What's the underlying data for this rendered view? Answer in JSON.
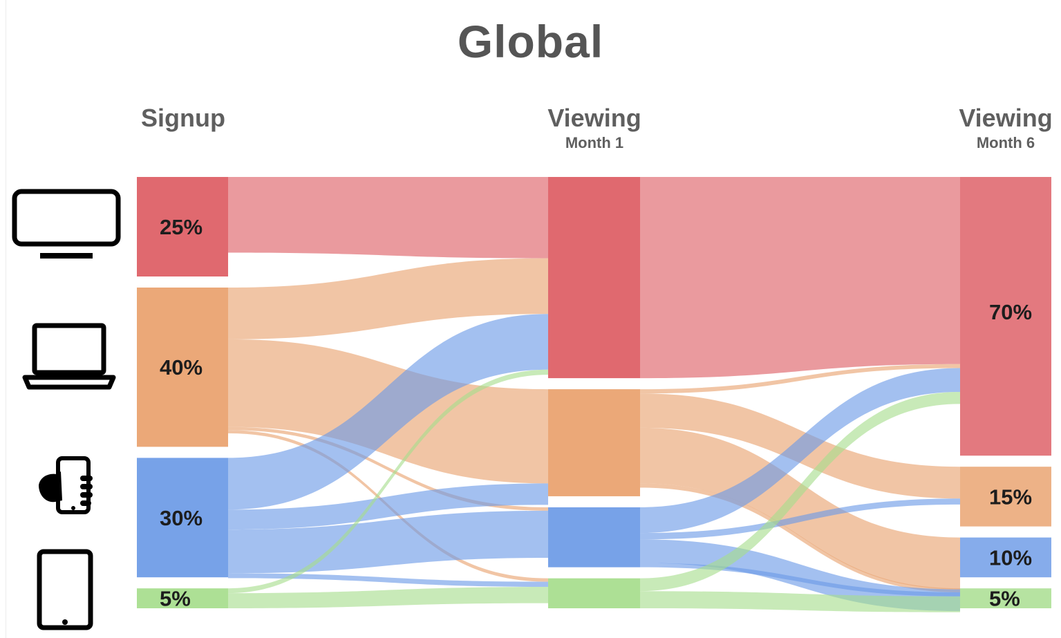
{
  "title": "Global",
  "stages": [
    {
      "id": "signup",
      "label": "Signup",
      "sublabel": ""
    },
    {
      "id": "m1",
      "label": "Viewing",
      "sublabel": "Month 1"
    },
    {
      "id": "m6",
      "label": "Viewing",
      "sublabel": "Month 6"
    }
  ],
  "devices": [
    {
      "key": "tv",
      "icon": "tv-icon",
      "color": "#dd5c63"
    },
    {
      "key": "laptop",
      "icon": "laptop-icon",
      "color": "#e9a16d"
    },
    {
      "key": "phone",
      "icon": "smartphone-icon",
      "color": "#6b9ae6"
    },
    {
      "key": "tablet",
      "icon": "tablet-icon",
      "color": "#a6dd8c"
    }
  ],
  "chart_data": {
    "type": "sankey",
    "title": "Global",
    "nodes": {
      "signup": [
        {
          "device": "tv",
          "value": 25,
          "label": "25%"
        },
        {
          "device": "laptop",
          "value": 40,
          "label": "40%"
        },
        {
          "device": "phone",
          "value": 30,
          "label": "30%"
        },
        {
          "device": "tablet",
          "value": 5,
          "label": "5%"
        }
      ],
      "m1": [
        {
          "device": "tv",
          "value": 47,
          "label": ""
        },
        {
          "device": "laptop",
          "value": 25,
          "label": ""
        },
        {
          "device": "phone",
          "value": 14,
          "label": ""
        },
        {
          "device": "tablet",
          "value": 7,
          "label": ""
        }
      ],
      "m6": [
        {
          "device": "tv",
          "value": 70,
          "label": "70%"
        },
        {
          "device": "laptop",
          "value": 15,
          "label": "15%"
        },
        {
          "device": "phone",
          "value": 10,
          "label": "10%"
        },
        {
          "device": "tablet",
          "value": 5,
          "label": "5%"
        }
      ]
    },
    "links": [
      {
        "stage": 0,
        "from": "tv",
        "to": "tv",
        "value": 19
      },
      {
        "stage": 0,
        "from": "laptop",
        "to": "tv",
        "value": 13
      },
      {
        "stage": 0,
        "from": "laptop",
        "to": "laptop",
        "value": 22
      },
      {
        "stage": 0,
        "from": "laptop",
        "to": "phone",
        "value": 0.8
      },
      {
        "stage": 0,
        "from": "laptop",
        "to": "tablet",
        "value": 0.8
      },
      {
        "stage": 0,
        "from": "phone",
        "to": "tv",
        "value": 13
      },
      {
        "stage": 0,
        "from": "phone",
        "to": "laptop",
        "value": 5
      },
      {
        "stage": 0,
        "from": "phone",
        "to": "phone",
        "value": 11
      },
      {
        "stage": 0,
        "from": "phone",
        "to": "tablet",
        "value": 1.2
      },
      {
        "stage": 0,
        "from": "tablet",
        "to": "tv",
        "value": 1.2
      },
      {
        "stage": 0,
        "from": "tablet",
        "to": "tablet",
        "value": 3.8
      },
      {
        "stage": 1,
        "from": "tv",
        "to": "tv",
        "value": 47
      },
      {
        "stage": 1,
        "from": "laptop",
        "to": "laptop",
        "value": 8
      },
      {
        "stage": 1,
        "from": "laptop",
        "to": "phone",
        "value": 13
      },
      {
        "stage": 1,
        "from": "laptop",
        "to": "tablet",
        "value": 1
      },
      {
        "stage": 1,
        "from": "laptop",
        "to": "tv",
        "value": 1
      },
      {
        "stage": 1,
        "from": "phone",
        "to": "tv",
        "value": 6
      },
      {
        "stage": 1,
        "from": "phone",
        "to": "laptop",
        "value": 1.5
      },
      {
        "stage": 1,
        "from": "phone",
        "to": "phone",
        "value": 5.5
      },
      {
        "stage": 1,
        "from": "phone",
        "to": "tablet",
        "value": 1
      },
      {
        "stage": 1,
        "from": "tablet",
        "to": "tv",
        "value": 3
      },
      {
        "stage": 1,
        "from": "tablet",
        "to": "tablet",
        "value": 4
      }
    ]
  }
}
